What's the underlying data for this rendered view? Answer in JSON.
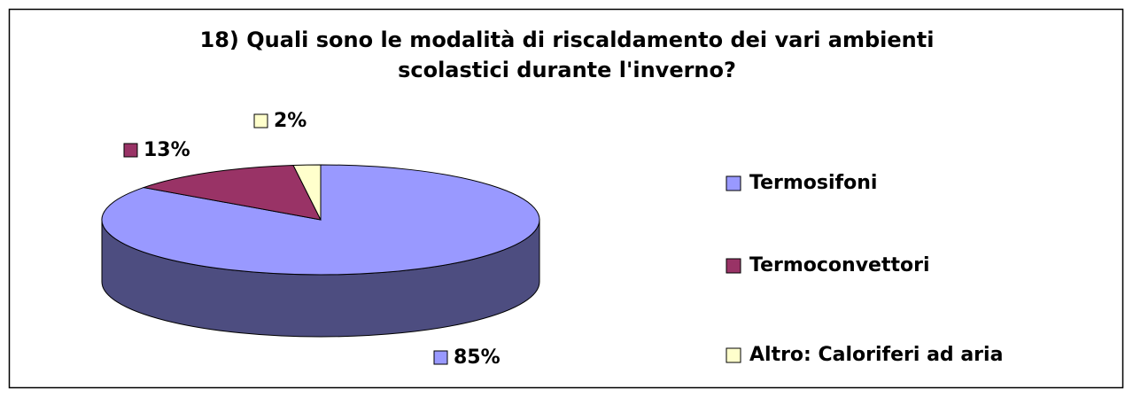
{
  "chart_data": {
    "type": "pie",
    "title": "18) Quali sono le modalità di riscaldamento dei vari ambienti scolastici durante l'inverno?",
    "categories": [
      "Termosifoni",
      "Termoconvettori",
      "Altro: Caloriferi ad aria"
    ],
    "values": [
      85,
      13,
      2
    ],
    "value_labels": [
      "85%",
      "13%",
      "2%"
    ],
    "colors": [
      "#9999ff",
      "#993366",
      "#ffffcc"
    ],
    "legend": "right"
  }
}
